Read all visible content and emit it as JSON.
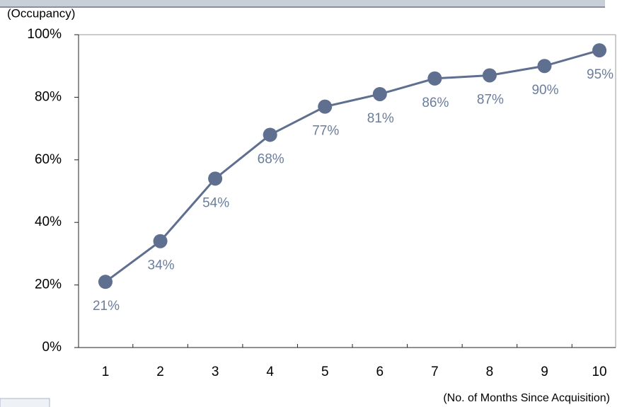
{
  "chart_data": {
    "type": "line",
    "y_axis_label": "(Occupancy)",
    "x_axis_label": "(No. of Months Since Acquisition)",
    "categories": [
      "1",
      "2",
      "3",
      "4",
      "5",
      "6",
      "7",
      "8",
      "9",
      "10"
    ],
    "series": [
      {
        "color": "#5f6f90",
        "values": [
          21,
          34,
          54,
          68,
          77,
          81,
          86,
          87,
          90,
          95
        ],
        "value_labels": [
          "21%",
          "34%",
          "54%",
          "68%",
          "77%",
          "81%",
          "86%",
          "87%",
          "90%",
          "95%"
        ]
      }
    ],
    "ylim": [
      0,
      100
    ],
    "yticks": [
      {
        "value": 0,
        "label": "0%"
      },
      {
        "value": 20,
        "label": "20%"
      },
      {
        "value": 40,
        "label": "40%"
      },
      {
        "value": 60,
        "label": "60%"
      },
      {
        "value": 80,
        "label": "80%"
      },
      {
        "value": 100,
        "label": "100%"
      }
    ]
  }
}
